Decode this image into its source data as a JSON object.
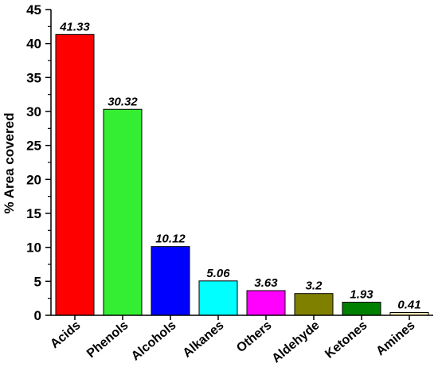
{
  "chart_data": {
    "type": "bar",
    "y_label": "% Area covered",
    "categories": [
      "Acids",
      "Phenols",
      "Alcohols",
      "Alkanes",
      "Others",
      "Aldehyde",
      "Ketones",
      "Amines"
    ],
    "values": [
      41.33,
      30.32,
      10.12,
      5.06,
      3.63,
      3.2,
      1.93,
      0.41
    ],
    "colors": [
      "#ff0000",
      "#33ee33",
      "#0000ff",
      "#00ffff",
      "#ff00ff",
      "#808000",
      "#008000",
      "#ffe4b5"
    ],
    "ylim": [
      0,
      45
    ],
    "yticks": [
      0,
      5,
      10,
      15,
      20,
      25,
      30,
      35,
      40,
      45
    ],
    "grid": false
  }
}
